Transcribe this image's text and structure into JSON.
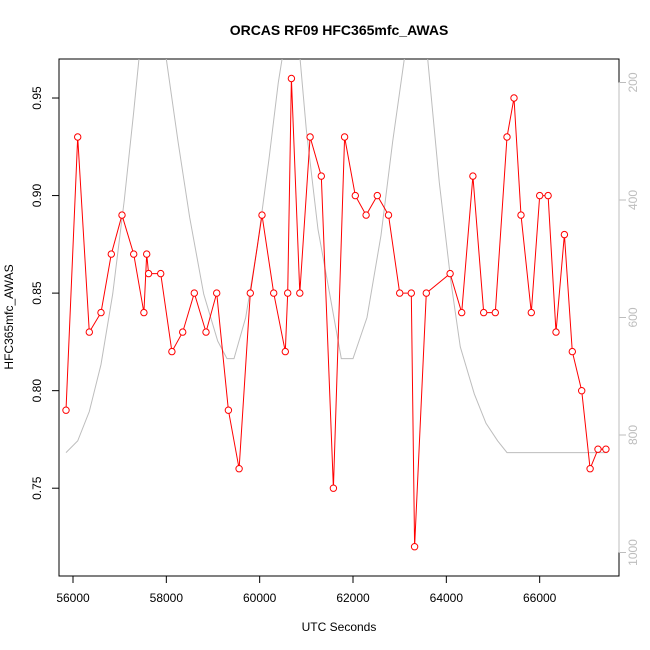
{
  "chart_data": {
    "type": "line",
    "title": "ORCAS RF09 HFC365mfc_AWAS",
    "xlabel": "UTC Seconds",
    "ylabel": "HFC365mfc_AWAS",
    "xlim": [
      55700,
      67700
    ],
    "ylim": [
      0.705,
      0.97
    ],
    "x_ticks": [
      56000,
      58000,
      60000,
      62000,
      64000,
      66000
    ],
    "y_ticks": [
      0.75,
      0.8,
      0.85,
      0.9,
      0.95
    ],
    "y2lim": [
      1040,
      160
    ],
    "y2_ticks": [
      200,
      400,
      600,
      800,
      1000
    ],
    "grid": false,
    "legend": "none",
    "colors": {
      "series": "#ff0000",
      "secondary": "#bdbdbd",
      "axes": "#000000"
    },
    "series": [
      {
        "axis": "left",
        "style": "line+open-circles",
        "x": [
          55850,
          56100,
          56350,
          56600,
          56820,
          57050,
          57300,
          57520,
          57580,
          57620,
          57880,
          58120,
          58350,
          58600,
          58850,
          59080,
          59330,
          59560,
          59800,
          60050,
          60300,
          60550,
          60600,
          60680,
          60860,
          61080,
          61320,
          61580,
          61820,
          62050,
          62280,
          62520,
          62760,
          63000,
          63250,
          63320,
          63570,
          64080,
          64330,
          64570,
          64800,
          65050,
          65300,
          65450,
          65600,
          65820,
          66000,
          66180,
          66350,
          66530,
          66700,
          66900,
          67080,
          67250,
          67420
        ],
        "y": [
          0.79,
          0.93,
          0.83,
          0.84,
          0.87,
          0.89,
          0.87,
          0.84,
          0.87,
          0.86,
          0.86,
          0.82,
          0.83,
          0.85,
          0.83,
          0.85,
          0.79,
          0.76,
          0.85,
          0.89,
          0.85,
          0.82,
          0.85,
          0.96,
          0.85,
          0.93,
          0.91,
          0.75,
          0.93,
          0.9,
          0.89,
          0.9,
          0.89,
          0.85,
          0.85,
          0.72,
          0.85,
          0.86,
          0.84,
          0.91,
          0.84,
          0.84,
          0.93,
          0.95,
          0.89,
          0.84,
          0.9,
          0.9,
          0.83,
          0.88,
          0.82,
          0.8,
          0.76,
          0.77,
          0.77
        ]
      },
      {
        "axis": "right",
        "style": "line",
        "x": [
          55850,
          56100,
          56350,
          56600,
          56850,
          57100,
          57300,
          57450,
          57700,
          58000,
          58250,
          58500,
          58800,
          59100,
          59300,
          59450,
          59700,
          59950,
          60200,
          60400,
          60600,
          60800,
          61000,
          61250,
          61500,
          61750,
          62000,
          62300,
          62600,
          62850,
          63100,
          63300,
          63600,
          63850,
          64100,
          64300,
          64600,
          64850,
          65100,
          65300,
          65600,
          65900,
          66200,
          66500,
          66800,
          67100,
          67450
        ],
        "y": [
          830,
          810,
          760,
          680,
          560,
          400,
          250,
          130,
          100,
          160,
          300,
          430,
          560,
          640,
          670,
          670,
          600,
          480,
          330,
          200,
          100,
          100,
          280,
          450,
          560,
          670,
          670,
          600,
          460,
          300,
          160,
          100,
          160,
          370,
          540,
          650,
          730,
          780,
          810,
          830,
          830,
          830,
          830,
          830,
          830,
          830,
          830
        ]
      }
    ]
  }
}
